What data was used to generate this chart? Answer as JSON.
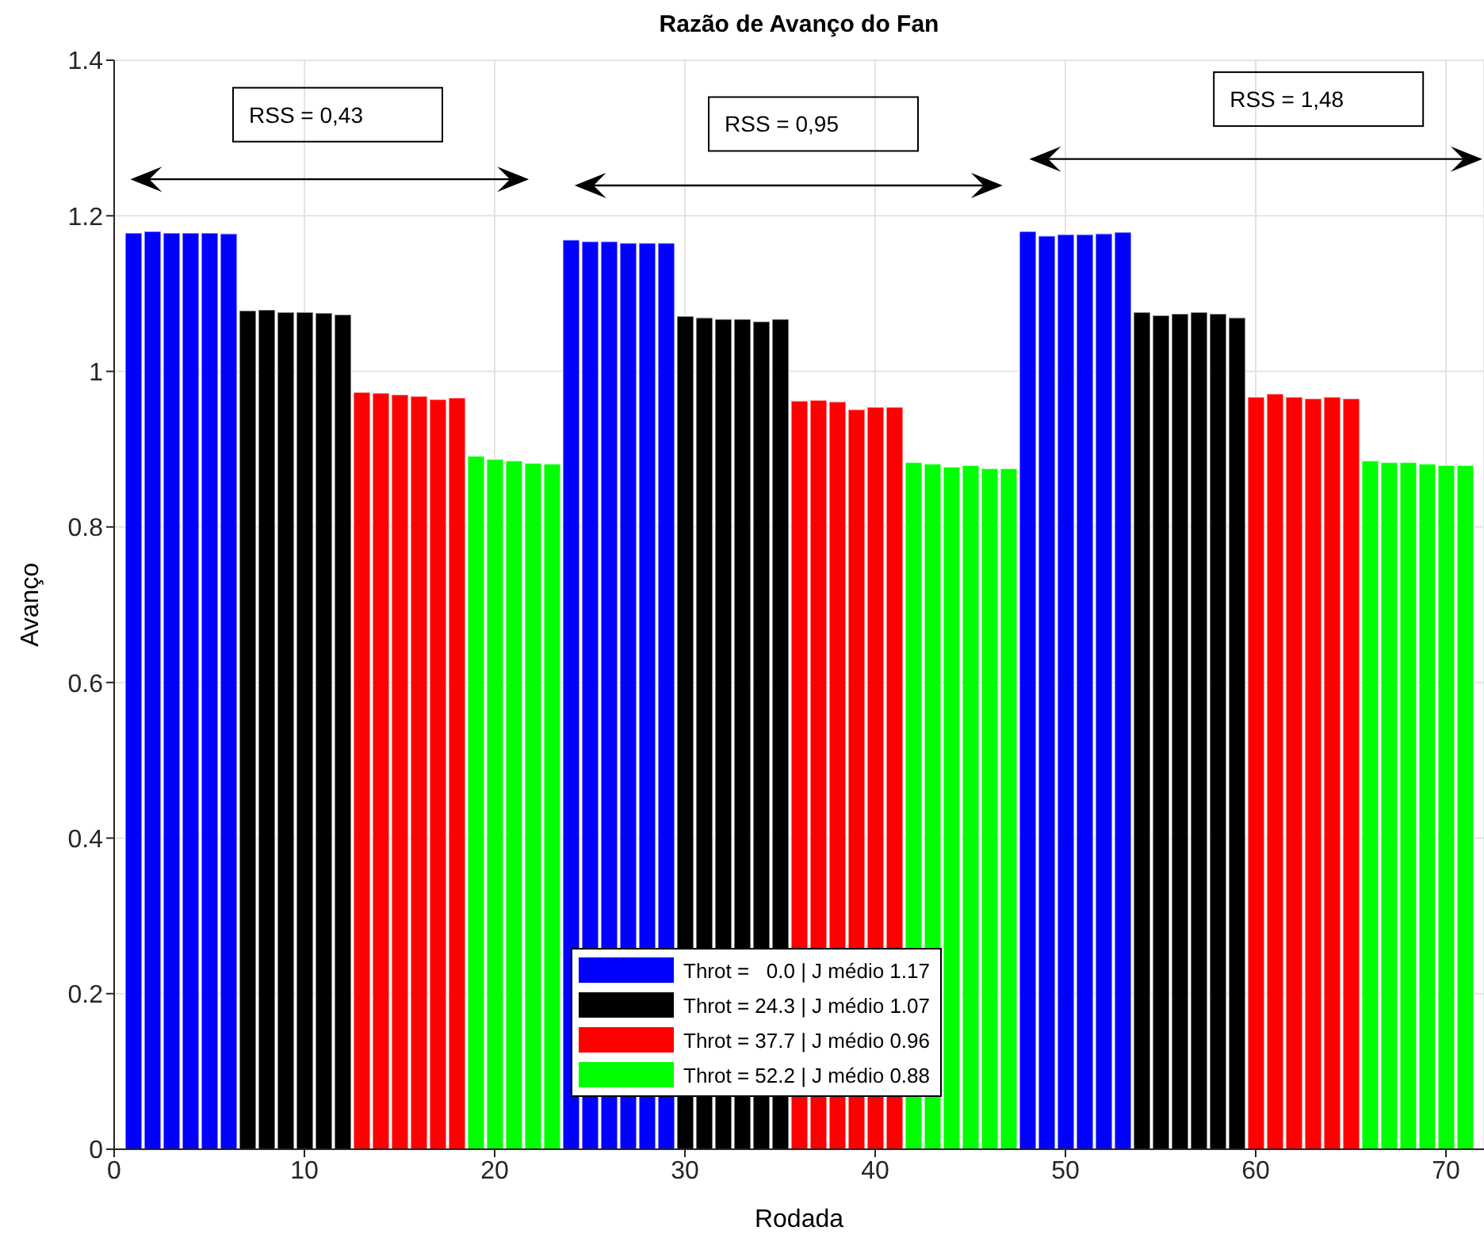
{
  "chart_data": {
    "type": "bar",
    "title": "Razão de Avanço do Fan",
    "xlabel": "Rodada",
    "ylabel": "Avanço",
    "series": [
      {
        "name": "Throt =   0.0 | J médio 1.17",
        "color": "#0000ff",
        "x": [
          1,
          2,
          3,
          4,
          5,
          6,
          24,
          25,
          26,
          27,
          28,
          29,
          48,
          49,
          50,
          51,
          52,
          53
        ],
        "values": [
          1.178,
          1.18,
          1.178,
          1.178,
          1.178,
          1.177,
          1.169,
          1.167,
          1.167,
          1.165,
          1.165,
          1.165,
          1.18,
          1.174,
          1.176,
          1.176,
          1.177,
          1.179
        ]
      },
      {
        "name": "Throt = 24.3 | J médio 1.07",
        "color": "#000000",
        "x": [
          7,
          8,
          9,
          10,
          11,
          12,
          30,
          31,
          32,
          33,
          34,
          35,
          54,
          55,
          56,
          57,
          58,
          59
        ],
        "values": [
          1.078,
          1.079,
          1.076,
          1.076,
          1.075,
          1.073,
          1.071,
          1.069,
          1.067,
          1.067,
          1.064,
          1.067,
          1.076,
          1.072,
          1.074,
          1.076,
          1.074,
          1.069
        ]
      },
      {
        "name": "Throt = 37.7 | J médio 0.96",
        "color": "#ff0000",
        "x": [
          13,
          14,
          15,
          16,
          17,
          18,
          36,
          37,
          38,
          39,
          40,
          41,
          60,
          61,
          62,
          63,
          64,
          65
        ],
        "values": [
          0.973,
          0.972,
          0.97,
          0.968,
          0.964,
          0.966,
          0.962,
          0.963,
          0.961,
          0.951,
          0.954,
          0.954,
          0.967,
          0.971,
          0.967,
          0.965,
          0.967,
          0.965
        ]
      },
      {
        "name": "Throt = 52.2 | J médio 0.88",
        "color": "#00ff00",
        "x": [
          19,
          20,
          21,
          22,
          23,
          42,
          43,
          44,
          45,
          46,
          47,
          66,
          67,
          68,
          69,
          70,
          71
        ],
        "values": [
          0.891,
          0.887,
          0.885,
          0.882,
          0.881,
          0.883,
          0.881,
          0.877,
          0.879,
          0.875,
          0.875,
          0.885,
          0.883,
          0.883,
          0.881,
          0.879,
          0.879
        ]
      }
    ],
    "xlim": [
      0,
      72
    ],
    "xticks": [
      0,
      10,
      20,
      30,
      40,
      50,
      60,
      70
    ],
    "ylim": [
      0,
      1.4
    ],
    "yticks": [
      0,
      0.2,
      0.4,
      0.6,
      0.8,
      1,
      1.2,
      1.4
    ],
    "grid": true,
    "legend": "bottom",
    "annotations": [
      "RSS = 0,43",
      "RSS = 0,95",
      "RSS = 1,48"
    ]
  }
}
